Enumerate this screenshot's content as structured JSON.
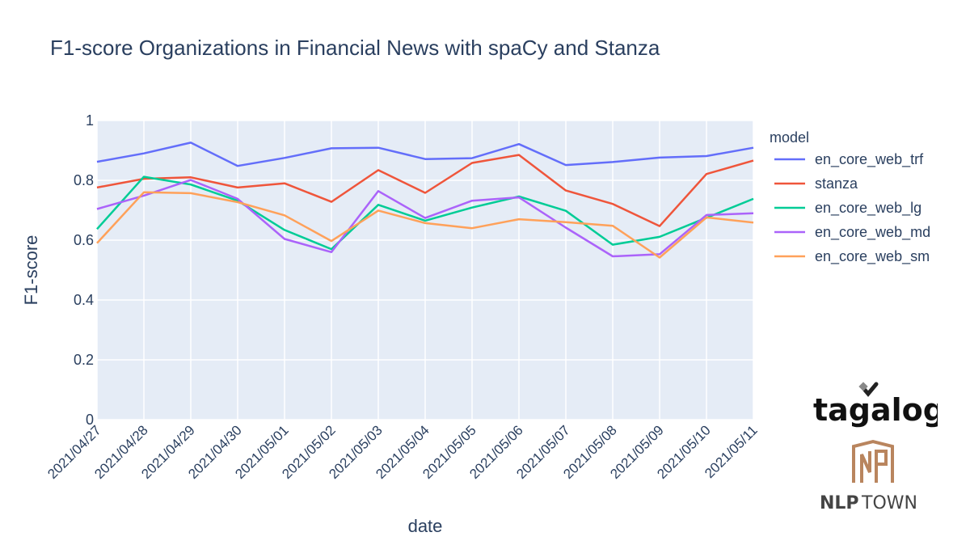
{
  "chart_data": {
    "type": "line",
    "title": "F1-score Organizations in Financial News with spaCy and Stanza",
    "xlabel": "date",
    "ylabel": "F1-score",
    "ylim": [
      0,
      1
    ],
    "yticks": [
      0,
      0.2,
      0.4,
      0.6,
      0.8,
      1
    ],
    "ytick_labels": [
      "0",
      "0.2",
      "0.4",
      "0.6",
      "0.8",
      "1"
    ],
    "x": [
      "2021/04/27",
      "2021/04/28",
      "2021/04/29",
      "2021/04/30",
      "2021/05/01",
      "2021/05/02",
      "2021/05/03",
      "2021/05/04",
      "2021/05/05",
      "2021/05/06",
      "2021/05/07",
      "2021/05/08",
      "2021/05/09",
      "2021/05/10",
      "2021/05/11"
    ],
    "legend_title": "model",
    "legend_position": "right",
    "grid": true,
    "series": [
      {
        "name": "en_core_web_trf",
        "color": "#636efa",
        "values": [
          0.862,
          0.89,
          0.926,
          0.848,
          0.875,
          0.907,
          0.909,
          0.871,
          0.874,
          0.921,
          0.851,
          0.861,
          0.876,
          0.881,
          0.909
        ]
      },
      {
        "name": "stanza",
        "color": "#ef553b",
        "values": [
          0.776,
          0.805,
          0.81,
          0.776,
          0.79,
          0.728,
          0.834,
          0.758,
          0.858,
          0.885,
          0.766,
          0.721,
          0.647,
          0.821,
          0.866
        ]
      },
      {
        "name": "en_core_web_lg",
        "color": "#00cc96",
        "values": [
          0.637,
          0.812,
          0.786,
          0.732,
          0.634,
          0.57,
          0.718,
          0.665,
          0.709,
          0.746,
          0.698,
          0.585,
          0.611,
          0.675,
          0.738
        ]
      },
      {
        "name": "en_core_web_md",
        "color": "#ab63fa",
        "values": [
          0.704,
          0.749,
          0.801,
          0.738,
          0.604,
          0.56,
          0.764,
          0.674,
          0.732,
          0.743,
          0.642,
          0.546,
          0.553,
          0.684,
          0.69
        ]
      },
      {
        "name": "en_core_web_sm",
        "color": "#ffa15a",
        "values": [
          0.59,
          0.76,
          0.757,
          0.727,
          0.683,
          0.597,
          0.699,
          0.657,
          0.64,
          0.67,
          0.66,
          0.648,
          0.542,
          0.676,
          0.659
        ]
      }
    ]
  },
  "logos": {
    "tagalog": "tagalog",
    "nlptown_bold": "NLP",
    "nlptown_light": "TOWN"
  }
}
